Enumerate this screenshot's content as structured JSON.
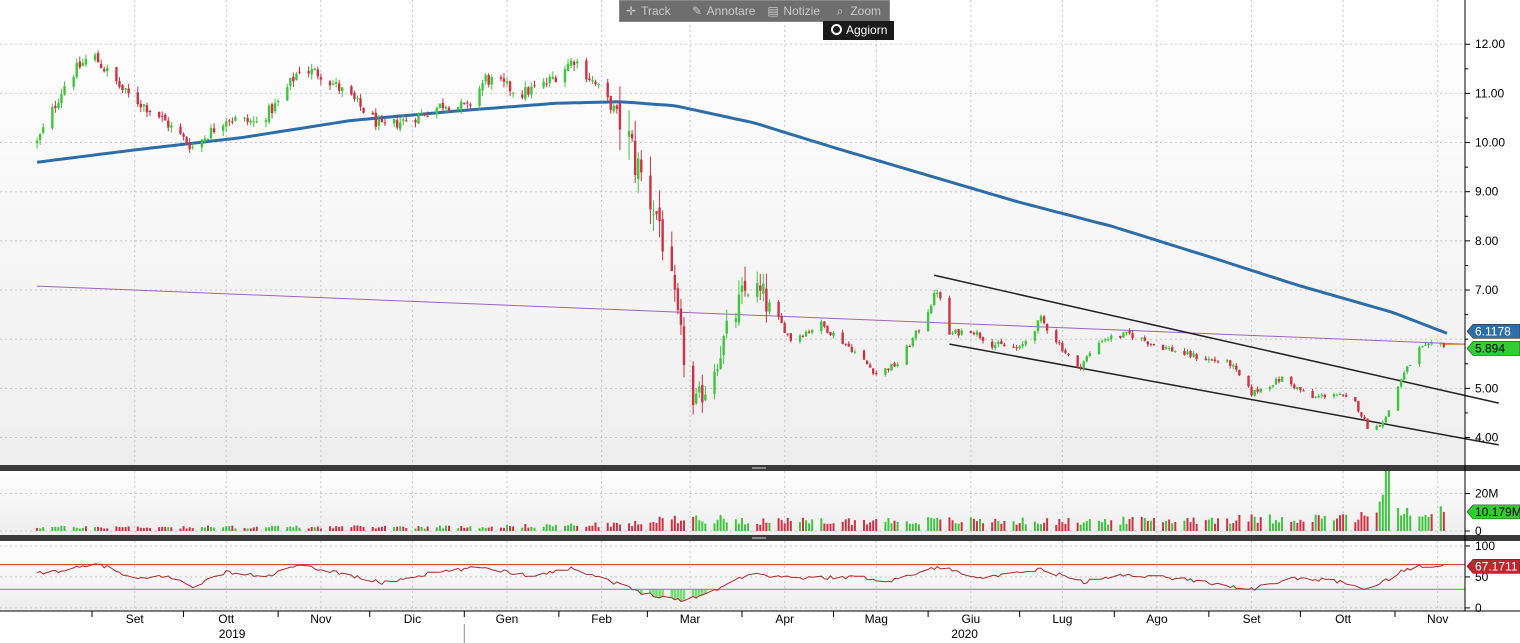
{
  "toolbar": {
    "track": "Track",
    "annotate": "Annotare",
    "news": "Notizie",
    "zoom": "Zoom",
    "update": "Aggiorn"
  },
  "colors": {
    "up": "#3fc63f",
    "down": "#cc3344",
    "ma_line": "#2e6ea8",
    "trend_line": "#9966bb",
    "channel": "#222222",
    "rsi_line": "#b02a2a",
    "rsi_upper": "#d94040",
    "rsi_lower": "#3fc63f",
    "rsi_fill": "#77dd77",
    "price_badge": "#33cc33",
    "ma_badge": "#2f6ea8",
    "rsi_badge": "#c02630",
    "volume_badge": "#33cc33"
  },
  "chart_data": [
    {
      "type": "candlestick",
      "panel": "price",
      "ylim": [
        3.4,
        12.9
      ],
      "y_ticks": [
        "12.00",
        "11.00",
        "10.00",
        "9.00",
        "8.00",
        "7.00",
        "5.00",
        "4.00"
      ],
      "last_price_label": "5.894",
      "ma_label": "6.1178",
      "x_months": [
        "Set",
        "Ott",
        "Nov",
        "Dic",
        "Gen",
        "Feb",
        "Mar",
        "Apr",
        "Mag",
        "Giu",
        "Lug",
        "Ago",
        "Set",
        "Ott",
        "Nov"
      ],
      "x_years": [
        "2019",
        "2020"
      ],
      "price_anchors": [
        [
          "2019-08-14",
          10.0
        ],
        [
          "2019-08-24",
          11.3
        ],
        [
          "2019-09-01",
          11.8
        ],
        [
          "2019-09-12",
          11.0
        ],
        [
          "2019-09-22",
          10.6
        ],
        [
          "2019-10-04",
          9.9
        ],
        [
          "2019-10-15",
          10.5
        ],
        [
          "2019-10-25",
          10.4
        ],
        [
          "2019-11-01",
          10.8
        ],
        [
          "2019-11-08",
          11.5
        ],
        [
          "2019-11-15",
          11.4
        ],
        [
          "2019-11-25",
          10.9
        ],
        [
          "2019-12-05",
          10.3
        ],
        [
          "2019-12-15",
          10.5
        ],
        [
          "2019-12-26",
          10.8
        ],
        [
          "2020-01-02",
          10.7
        ],
        [
          "2020-01-08",
          11.3
        ],
        [
          "2020-01-20",
          11.0
        ],
        [
          "2020-01-28",
          11.2
        ],
        [
          "2020-02-06",
          11.7
        ],
        [
          "2020-02-14",
          11.1
        ],
        [
          "2020-02-21",
          10.5
        ],
        [
          "2020-02-28",
          9.3
        ],
        [
          "2020-03-05",
          8.4
        ],
        [
          "2020-03-12",
          6.0
        ],
        [
          "2020-03-16",
          4.6
        ],
        [
          "2020-03-20",
          5.0
        ],
        [
          "2020-03-27",
          6.1
        ],
        [
          "2020-04-03",
          7.1
        ],
        [
          "2020-04-10",
          6.7
        ],
        [
          "2020-04-17",
          6.0
        ],
        [
          "2020-04-27",
          6.3
        ],
        [
          "2020-05-07",
          5.8
        ],
        [
          "2020-05-15",
          5.3
        ],
        [
          "2020-05-22",
          5.5
        ],
        [
          "2020-05-29",
          6.2
        ],
        [
          "2020-06-04",
          7.0
        ],
        [
          "2020-06-08",
          6.1
        ],
        [
          "2020-06-15",
          6.2
        ],
        [
          "2020-06-22",
          5.9
        ],
        [
          "2020-07-01",
          5.8
        ],
        [
          "2020-07-08",
          6.4
        ],
        [
          "2020-07-20",
          5.4
        ],
        [
          "2020-07-28",
          6.0
        ],
        [
          "2020-08-06",
          6.1
        ],
        [
          "2020-08-14",
          5.9
        ],
        [
          "2020-08-24",
          5.7
        ],
        [
          "2020-08-31",
          5.6
        ],
        [
          "2020-09-08",
          5.5
        ],
        [
          "2020-09-15",
          4.9
        ],
        [
          "2020-09-25",
          5.2
        ],
        [
          "2020-10-05",
          4.8
        ],
        [
          "2020-10-12",
          4.9
        ],
        [
          "2020-10-19",
          4.7
        ],
        [
          "2020-10-24",
          4.1
        ],
        [
          "2020-10-29",
          4.4
        ],
        [
          "2020-11-03",
          5.2
        ],
        [
          "2020-11-09",
          5.8
        ],
        [
          "2020-11-17",
          5.9
        ]
      ],
      "moving_average_anchors": [
        [
          "2019-08-14",
          9.6
        ],
        [
          "2019-09-15",
          9.85
        ],
        [
          "2019-10-20",
          10.1
        ],
        [
          "2019-11-25",
          10.45
        ],
        [
          "2019-12-31",
          10.65
        ],
        [
          "2020-01-31",
          10.8
        ],
        [
          "2020-02-21",
          10.83
        ],
        [
          "2020-03-10",
          10.75
        ],
        [
          "2020-04-05",
          10.4
        ],
        [
          "2020-05-01",
          9.9
        ],
        [
          "2020-05-31",
          9.35
        ],
        [
          "2020-06-30",
          8.8
        ],
        [
          "2020-07-31",
          8.3
        ],
        [
          "2020-08-31",
          7.7
        ],
        [
          "2020-09-30",
          7.1
        ],
        [
          "2020-10-31",
          6.55
        ],
        [
          "2020-11-18",
          6.12
        ]
      ],
      "trend_line": [
        [
          "2019-08-14",
          7.08
        ],
        [
          "2020-11-24",
          5.9
        ]
      ],
      "channel_upper": [
        [
          "2020-06-03",
          7.3
        ],
        [
          "2020-12-05",
          4.7
        ]
      ],
      "channel_lower": [
        [
          "2020-06-08",
          5.9
        ],
        [
          "2020-12-05",
          3.85
        ]
      ]
    },
    {
      "type": "bar",
      "panel": "volume",
      "y_ticks": [
        "20M",
        "0"
      ],
      "last_label": "10.179M",
      "volume_anchors": [
        [
          "2019-08-14",
          2.0
        ],
        [
          "2019-12-31",
          2.2
        ],
        [
          "2020-02-24",
          3.5
        ],
        [
          "2020-03-12",
          7.0
        ],
        [
          "2020-04-15",
          5.0
        ],
        [
          "2020-06-01",
          5.5
        ],
        [
          "2020-07-15",
          5.0
        ],
        [
          "2020-09-15",
          6.5
        ],
        [
          "2020-10-20",
          7.0
        ],
        [
          "2020-10-26",
          10.0
        ],
        [
          "2020-10-29",
          27.0
        ],
        [
          "2020-11-02",
          12.0
        ],
        [
          "2020-11-10",
          8.0
        ],
        [
          "2020-11-17",
          10.2
        ]
      ]
    },
    {
      "type": "line",
      "panel": "rsi",
      "ylim": [
        -5,
        108
      ],
      "y_ticks": [
        "100",
        "50",
        "0"
      ],
      "upper_level": 70,
      "lower_level": 30,
      "last_label": "67.1711",
      "rsi_anchors": [
        [
          "2019-08-14",
          55
        ],
        [
          "2019-08-28",
          65
        ],
        [
          "2019-09-04",
          70
        ],
        [
          "2019-09-15",
          45
        ],
        [
          "2019-09-25",
          52
        ],
        [
          "2019-10-04",
          35
        ],
        [
          "2019-10-15",
          58
        ],
        [
          "2019-10-28",
          50
        ],
        [
          "2019-11-07",
          68
        ],
        [
          "2019-11-20",
          58
        ],
        [
          "2019-12-05",
          40
        ],
        [
          "2019-12-20",
          55
        ],
        [
          "2020-01-07",
          66
        ],
        [
          "2020-01-22",
          52
        ],
        [
          "2020-02-06",
          64
        ],
        [
          "2020-02-17",
          45
        ],
        [
          "2020-02-28",
          25
        ],
        [
          "2020-03-12",
          12
        ],
        [
          "2020-03-20",
          22
        ],
        [
          "2020-04-03",
          55
        ],
        [
          "2020-04-20",
          48
        ],
        [
          "2020-05-07",
          50
        ],
        [
          "2020-05-20",
          44
        ],
        [
          "2020-06-04",
          66
        ],
        [
          "2020-06-20",
          48
        ],
        [
          "2020-07-08",
          62
        ],
        [
          "2020-07-22",
          42
        ],
        [
          "2020-08-06",
          54
        ],
        [
          "2020-08-25",
          46
        ],
        [
          "2020-09-15",
          30
        ],
        [
          "2020-09-29",
          48
        ],
        [
          "2020-10-12",
          44
        ],
        [
          "2020-10-24",
          30
        ],
        [
          "2020-11-03",
          58
        ],
        [
          "2020-11-10",
          68
        ],
        [
          "2020-11-17",
          67.2
        ]
      ]
    }
  ]
}
